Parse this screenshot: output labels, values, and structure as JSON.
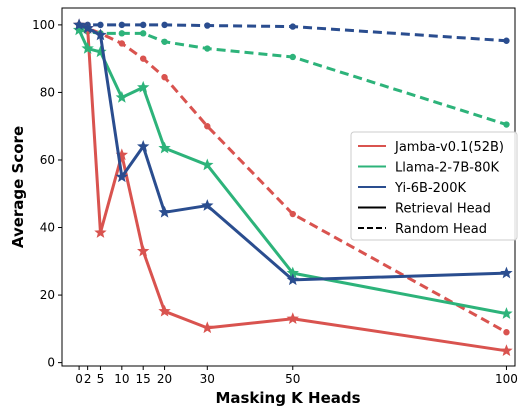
{
  "chart_data": {
    "type": "line",
    "xlabel": "Masking K Heads",
    "ylabel": "Average Score",
    "xlim": [
      -4,
      102
    ],
    "ylim": [
      -1,
      105
    ],
    "xticks": [
      0,
      2,
      5,
      10,
      15,
      20,
      30,
      50,
      100
    ],
    "yticks": [
      0,
      20,
      40,
      60,
      80,
      100
    ],
    "grid": false,
    "legend_position": "right",
    "series": [
      {
        "name": "Jamba-v0.1(52B)",
        "color": "#d9534f",
        "head": "Retrieval Head",
        "x": [
          0,
          2,
          5,
          10,
          15,
          20,
          30,
          50,
          100
        ],
        "values": [
          100,
          99,
          38.5,
          61.5,
          33,
          15.2,
          10.3,
          13,
          3.5
        ]
      },
      {
        "name": "Jamba-v0.1(52B)",
        "color": "#d9534f",
        "head": "Random Head",
        "x": [
          0,
          2,
          5,
          10,
          15,
          20,
          30,
          50,
          100
        ],
        "values": [
          100,
          99,
          97.5,
          94.5,
          90,
          84.5,
          70,
          44,
          9
        ]
      },
      {
        "name": "Llama-2-7B-80K",
        "color": "#2db37a",
        "head": "Retrieval Head",
        "x": [
          0,
          2,
          5,
          10,
          15,
          20,
          30,
          50,
          100
        ],
        "values": [
          98.5,
          93,
          92,
          78.5,
          81.5,
          63.5,
          58.5,
          26.5,
          14.5
        ]
      },
      {
        "name": "Llama-2-7B-80K",
        "color": "#2db37a",
        "head": "Random Head",
        "x": [
          0,
          2,
          5,
          10,
          15,
          20,
          30,
          50,
          100
        ],
        "values": [
          98.5,
          98,
          97.5,
          97.5,
          97.5,
          95,
          93,
          90.5,
          70.5
        ]
      },
      {
        "name": "Yi-6B-200K",
        "color": "#2a4d8f",
        "head": "Retrieval Head",
        "x": [
          0,
          2,
          5,
          10,
          15,
          20,
          30,
          50,
          100
        ],
        "values": [
          100,
          99,
          97,
          55,
          64,
          44.5,
          46.5,
          24.5,
          26.5
        ]
      },
      {
        "name": "Yi-6B-200K",
        "color": "#2a4d8f",
        "head": "Random Head",
        "x": [
          0,
          2,
          5,
          10,
          15,
          20,
          30,
          50,
          100
        ],
        "values": [
          100,
          100,
          100,
          100,
          100,
          100,
          99.8,
          99.5,
          95.3
        ]
      }
    ],
    "legend": [
      {
        "label": "Jamba-v0.1(52B)",
        "color": "#d9534f",
        "style": "solid"
      },
      {
        "label": "Llama-2-7B-80K",
        "color": "#2db37a",
        "style": "solid"
      },
      {
        "label": "Yi-6B-200K",
        "color": "#2a4d8f",
        "style": "solid"
      },
      {
        "label": "Retrieval Head",
        "color": "#000000",
        "style": "solid"
      },
      {
        "label": "Random Head",
        "color": "#000000",
        "style": "dashed"
      }
    ]
  }
}
